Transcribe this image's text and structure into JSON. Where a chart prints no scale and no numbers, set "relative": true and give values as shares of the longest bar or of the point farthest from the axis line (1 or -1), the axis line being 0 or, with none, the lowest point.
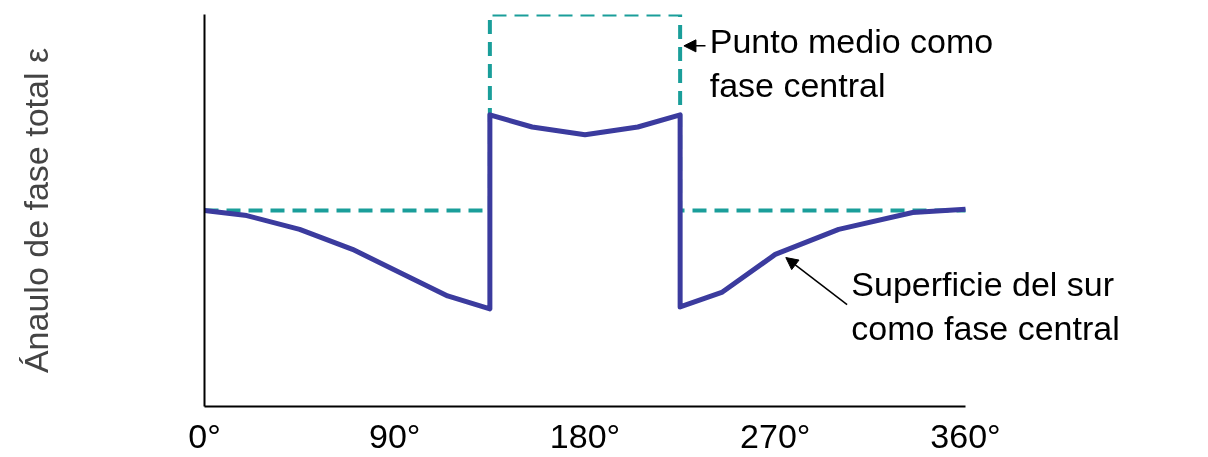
{
  "chart_data": {
    "type": "line",
    "relative": true,
    "ylabel": "Ánaulo de fase total ε",
    "xlim": [
      0,
      360
    ],
    "xticks": [
      {
        "value": 0,
        "label": "0°"
      },
      {
        "value": 90,
        "label": "90°"
      },
      {
        "value": 180,
        "label": "180°"
      },
      {
        "value": 270,
        "label": "270°"
      },
      {
        "value": 360,
        "label": "360°"
      }
    ],
    "grid": false,
    "series": [
      {
        "color": "#1a9e9a",
        "line_style": "dashed",
        "x": [
          0,
          135,
          135,
          225,
          225,
          360
        ],
        "values": [
          0.5,
          0.5,
          1.0,
          1.0,
          0.5,
          0.5
        ]
      },
      {
        "color": "#3b3b9e",
        "line_style": "solid",
        "x": [
          0,
          20,
          45,
          70,
          95,
          115,
          135,
          135,
          155,
          180,
          205,
          225,
          225,
          245,
          270,
          300,
          335,
          360
        ],
        "values": [
          0.5,
          0.487,
          0.452,
          0.401,
          0.335,
          0.282,
          0.249,
          0.744,
          0.713,
          0.693,
          0.713,
          0.744,
          0.254,
          0.292,
          0.388,
          0.452,
          0.495,
          0.503
        ]
      }
    ],
    "annotations": [
      {
        "text": "Punto medio como\nfase central",
        "x": 225,
        "y": 0.92
      },
      {
        "text": "Superficie del sur\ncomo fase central",
        "x": 272,
        "y": 0.39
      }
    ]
  }
}
